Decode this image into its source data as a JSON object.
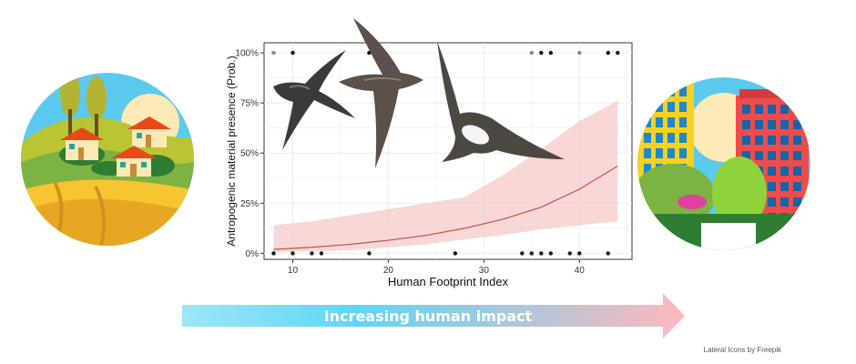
{
  "chart_data": {
    "type": "scatter",
    "title": "",
    "xlabel": "Human Footprint Index",
    "ylabel": "Antropogenic material presence (Prob.)",
    "xlim": [
      7,
      45.5
    ],
    "ylim": [
      -0.03,
      1.05
    ],
    "x_ticks": [
      10,
      20,
      30,
      40
    ],
    "y_ticks": [
      {
        "value": 0,
        "label": "0%"
      },
      {
        "value": 0.25,
        "label": "25%"
      },
      {
        "value": 0.5,
        "label": "50%"
      },
      {
        "value": 0.75,
        "label": "75%"
      },
      {
        "value": 1,
        "label": "100%"
      }
    ],
    "grid": true,
    "observations": [
      {
        "x": 8,
        "y": 1,
        "shade": "light"
      },
      {
        "x": 10,
        "y": 1,
        "shade": "dark"
      },
      {
        "x": 18,
        "y": 1,
        "shade": "dark"
      },
      {
        "x": 35,
        "y": 1,
        "shade": "light"
      },
      {
        "x": 36,
        "y": 1,
        "shade": "dark"
      },
      {
        "x": 37,
        "y": 1,
        "shade": "dark"
      },
      {
        "x": 40,
        "y": 1,
        "shade": "light"
      },
      {
        "x": 43,
        "y": 1,
        "shade": "dark"
      },
      {
        "x": 44,
        "y": 1,
        "shade": "dark"
      },
      {
        "x": 8,
        "y": 0,
        "shade": "dark"
      },
      {
        "x": 10,
        "y": 0,
        "shade": "dark"
      },
      {
        "x": 12,
        "y": 0,
        "shade": "dark"
      },
      {
        "x": 13,
        "y": 0,
        "shade": "dark"
      },
      {
        "x": 18,
        "y": 0,
        "shade": "dark"
      },
      {
        "x": 27,
        "y": 0,
        "shade": "dark"
      },
      {
        "x": 34,
        "y": 0,
        "shade": "dark"
      },
      {
        "x": 35,
        "y": 0,
        "shade": "dark"
      },
      {
        "x": 36,
        "y": 0,
        "shade": "dark"
      },
      {
        "x": 37,
        "y": 0,
        "shade": "dark"
      },
      {
        "x": 39,
        "y": 0,
        "shade": "dark"
      },
      {
        "x": 40,
        "y": 0,
        "shade": "dark"
      },
      {
        "x": 43,
        "y": 0,
        "shade": "dark"
      }
    ],
    "fit": {
      "x": [
        8,
        12,
        16,
        20,
        24,
        28,
        32,
        36,
        40,
        44
      ],
      "y": [
        0.02,
        0.03,
        0.045,
        0.065,
        0.09,
        0.125,
        0.17,
        0.23,
        0.32,
        0.435
      ]
    },
    "ci_upper": [
      0.14,
      0.16,
      0.19,
      0.22,
      0.25,
      0.28,
      0.39,
      0.52,
      0.66,
      0.76
    ],
    "ci_lower": [
      0.005,
      0.01,
      0.015,
      0.03,
      0.045,
      0.07,
      0.09,
      0.12,
      0.14,
      0.16
    ],
    "colors": {
      "line": "#c0504d",
      "ribbon": "#f4c2c2",
      "point_dark": "#111111",
      "point_light": "#888888",
      "grid": "#ececec"
    }
  },
  "arrow": {
    "label": "Increasing human impact",
    "color_start": "#9ee6f7",
    "color_mid": "#5dd6f5",
    "color_end": "#ffb8bd"
  },
  "credit": "Lateral Icons by Freepik",
  "illustrations": {
    "left": "rural-village-icon",
    "right": "city-buildings-icon",
    "birds": "swift-bird-icon"
  }
}
